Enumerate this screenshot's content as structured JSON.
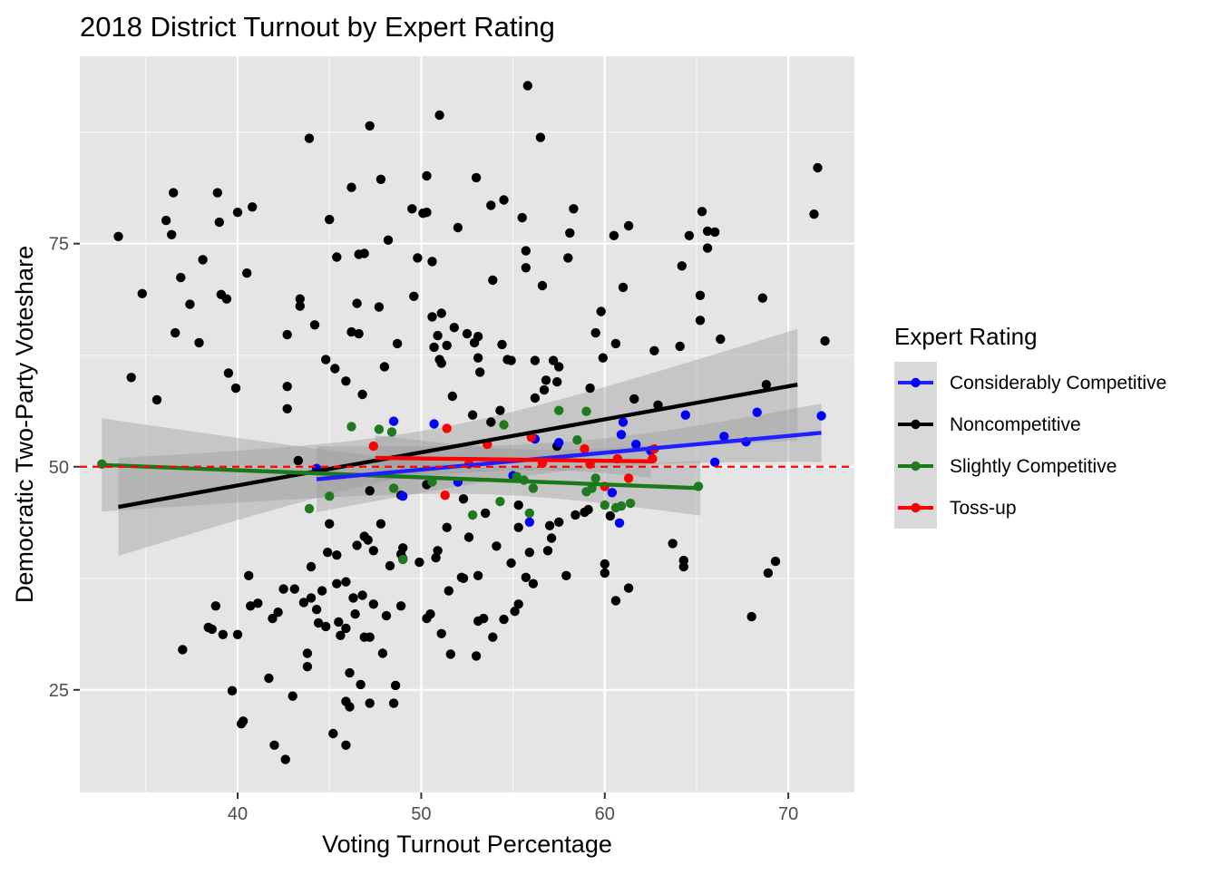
{
  "chart_data": {
    "type": "scatter",
    "title": "2018 District Turnout by Expert Rating",
    "xlabel": "Voting Turnout Percentage",
    "ylabel": "Democratic Two-Party Voteshare",
    "xlim": [
      31.4,
      73.6
    ],
    "ylim": [
      13.5,
      96.0
    ],
    "x_ticks": [
      40,
      50,
      60,
      70
    ],
    "y_ticks": [
      25,
      50,
      75
    ],
    "x_tick_labels": [
      "40",
      "50",
      "60",
      "70"
    ],
    "y_tick_labels": [
      "25",
      "50",
      "75"
    ],
    "grid": true,
    "reference_line": {
      "y": 50,
      "style": "dashed",
      "color": "#ff0000"
    },
    "legend": {
      "title": "Expert Rating",
      "position": "right"
    },
    "series": [
      {
        "name": "Considerably Competitive",
        "color": "#0000ff",
        "points": [
          [
            48.5,
            55.1
          ],
          [
            50.7,
            54.8
          ],
          [
            49.0,
            46.7
          ],
          [
            52.0,
            48.3
          ],
          [
            55.0,
            49.0
          ],
          [
            56.2,
            53.1
          ],
          [
            57.5,
            52.7
          ],
          [
            55.9,
            43.8
          ],
          [
            60.4,
            47.1
          ],
          [
            60.8,
            43.7
          ],
          [
            60.9,
            53.6
          ],
          [
            61.0,
            55.0
          ],
          [
            61.7,
            52.5
          ],
          [
            62.5,
            51.8
          ],
          [
            64.4,
            55.8
          ],
          [
            66.0,
            50.5
          ],
          [
            66.5,
            53.4
          ],
          [
            67.7,
            52.8
          ],
          [
            68.3,
            56.1
          ],
          [
            71.8,
            55.7
          ],
          [
            44.3,
            49.8
          ]
        ],
        "trend": {
          "x": [
            44.3,
            71.8
          ],
          "y": [
            48.6,
            53.8
          ]
        }
      },
      {
        "name": "Noncompetitive",
        "color": "#000000",
        "points": [
          [
            33.5,
            75.8
          ],
          [
            34.2,
            60.0
          ],
          [
            34.8,
            69.4
          ],
          [
            35.6,
            57.5
          ],
          [
            36.1,
            77.6
          ],
          [
            36.4,
            76.0
          ],
          [
            36.5,
            80.7
          ],
          [
            36.6,
            65.0
          ],
          [
            36.9,
            71.2
          ],
          [
            37.0,
            29.5
          ],
          [
            37.4,
            68.2
          ],
          [
            37.9,
            63.9
          ],
          [
            38.1,
            73.2
          ],
          [
            38.4,
            32.0
          ],
          [
            38.6,
            31.8
          ],
          [
            38.8,
            34.4
          ],
          [
            38.9,
            80.7
          ],
          [
            39.0,
            77.4
          ],
          [
            39.1,
            69.3
          ],
          [
            39.2,
            31.2
          ],
          [
            39.4,
            68.8
          ],
          [
            39.5,
            60.5
          ],
          [
            39.7,
            24.9
          ],
          [
            39.9,
            58.8
          ],
          [
            40.0,
            78.5
          ],
          [
            40.0,
            31.2
          ],
          [
            40.2,
            21.2
          ],
          [
            40.3,
            21.5
          ],
          [
            40.5,
            71.7
          ],
          [
            40.6,
            37.8
          ],
          [
            40.8,
            79.1
          ],
          [
            40.7,
            34.4
          ],
          [
            41.1,
            34.7
          ],
          [
            41.7,
            26.3
          ],
          [
            41.9,
            33.0
          ],
          [
            42.0,
            18.8
          ],
          [
            42.2,
            33.7
          ],
          [
            42.6,
            17.2
          ],
          [
            42.5,
            36.3
          ],
          [
            42.7,
            64.8
          ],
          [
            42.7,
            59.0
          ],
          [
            42.7,
            56.5
          ],
          [
            43.0,
            24.3
          ],
          [
            43.1,
            36.3
          ],
          [
            43.4,
            68.0
          ],
          [
            43.4,
            68.8
          ],
          [
            43.6,
            34.8
          ],
          [
            43.8,
            29.1
          ],
          [
            43.8,
            27.6
          ],
          [
            43.9,
            86.8
          ],
          [
            44.0,
            38.8
          ],
          [
            44.0,
            35.3
          ],
          [
            44.2,
            65.9
          ],
          [
            44.3,
            34.0
          ],
          [
            44.4,
            32.5
          ],
          [
            44.6,
            36.1
          ],
          [
            44.8,
            62.0
          ],
          [
            44.8,
            32.1
          ],
          [
            44.9,
            40.4
          ],
          [
            45.0,
            77.7
          ],
          [
            45.0,
            43.6
          ],
          [
            45.2,
            20.1
          ],
          [
            45.3,
            61.0
          ],
          [
            45.4,
            73.5
          ],
          [
            45.4,
            36.9
          ],
          [
            45.4,
            40.1
          ],
          [
            45.5,
            32.6
          ],
          [
            45.6,
            31.1
          ],
          [
            45.9,
            59.6
          ],
          [
            45.9,
            37.1
          ],
          [
            45.9,
            31.9
          ],
          [
            45.9,
            18.8
          ],
          [
            45.9,
            23.7
          ],
          [
            46.1,
            26.9
          ],
          [
            46.1,
            23.1
          ],
          [
            46.2,
            81.3
          ],
          [
            46.2,
            65.1
          ],
          [
            46.3,
            35.3
          ],
          [
            46.4,
            33.5
          ],
          [
            46.5,
            68.3
          ],
          [
            46.5,
            41.2
          ],
          [
            46.6,
            64.9
          ],
          [
            46.6,
            73.8
          ],
          [
            46.7,
            25.6
          ],
          [
            46.8,
            58.1
          ],
          [
            46.8,
            35.6
          ],
          [
            46.9,
            73.9
          ],
          [
            46.9,
            42.2
          ],
          [
            46.9,
            30.9
          ],
          [
            47.1,
            41.8
          ],
          [
            47.2,
            88.2
          ],
          [
            47.2,
            30.9
          ],
          [
            47.2,
            23.5
          ],
          [
            47.4,
            40.6
          ],
          [
            47.4,
            34.6
          ],
          [
            47.7,
            67.9
          ],
          [
            47.8,
            82.2
          ],
          [
            47.8,
            43.6
          ],
          [
            47.9,
            29.1
          ],
          [
            48.0,
            61.2
          ],
          [
            48.1,
            33.3
          ],
          [
            48.2,
            75.4
          ],
          [
            48.3,
            38.9
          ],
          [
            48.5,
            23.5
          ],
          [
            48.6,
            25.5
          ],
          [
            48.7,
            63.8
          ],
          [
            48.9,
            40.2
          ],
          [
            48.9,
            34.4
          ],
          [
            48.9,
            46.8
          ],
          [
            49.0,
            39.7
          ],
          [
            49.0,
            40.9
          ],
          [
            49.5,
            78.9
          ],
          [
            49.6,
            69.1
          ],
          [
            49.8,
            73.4
          ],
          [
            49.9,
            39.3
          ],
          [
            50.1,
            78.4
          ],
          [
            50.3,
            82.6
          ],
          [
            50.3,
            48.0
          ],
          [
            50.3,
            78.5
          ],
          [
            50.3,
            33.0
          ],
          [
            50.5,
            33.5
          ],
          [
            50.6,
            73.0
          ],
          [
            50.6,
            66.8
          ],
          [
            50.7,
            63.4
          ],
          [
            50.8,
            39.8
          ],
          [
            50.9,
            64.7
          ],
          [
            50.9,
            40.6
          ],
          [
            51.0,
            62.0
          ],
          [
            51.0,
            89.4
          ],
          [
            51.1,
            67.2
          ],
          [
            51.1,
            61.6
          ],
          [
            51.1,
            31.3
          ],
          [
            51.4,
            43.2
          ],
          [
            51.4,
            63.6
          ],
          [
            51.5,
            36.1
          ],
          [
            51.6,
            29.0
          ],
          [
            51.7,
            57.9
          ],
          [
            51.8,
            65.6
          ],
          [
            52.0,
            76.8
          ],
          [
            52.2,
            37.6
          ],
          [
            52.3,
            37.5
          ],
          [
            52.3,
            46.4
          ],
          [
            52.5,
            64.9
          ],
          [
            52.6,
            42.1
          ],
          [
            52.8,
            55.8
          ],
          [
            52.9,
            63.9
          ],
          [
            53.0,
            82.4
          ],
          [
            53.0,
            28.8
          ],
          [
            53.1,
            64.6
          ],
          [
            53.1,
            62.2
          ],
          [
            53.1,
            37.8
          ],
          [
            53.1,
            32.7
          ],
          [
            53.2,
            60.6
          ],
          [
            53.4,
            33.0
          ],
          [
            53.5,
            44.8
          ],
          [
            53.8,
            79.3
          ],
          [
            53.8,
            55.0
          ],
          [
            53.9,
            30.9
          ],
          [
            53.9,
            70.9
          ],
          [
            54.1,
            41.1
          ],
          [
            54.3,
            56.3
          ],
          [
            54.4,
            63.7
          ],
          [
            54.5,
            79.9
          ],
          [
            54.5,
            32.9
          ],
          [
            54.7,
            62.0
          ],
          [
            54.9,
            61.9
          ],
          [
            54.9,
            39.2
          ],
          [
            55.1,
            33.8
          ],
          [
            55.3,
            34.6
          ],
          [
            55.3,
            45.7
          ],
          [
            55.3,
            43.2
          ],
          [
            55.5,
            77.9
          ],
          [
            55.7,
            72.3
          ],
          [
            55.7,
            74.2
          ],
          [
            55.7,
            37.6
          ],
          [
            55.8,
            92.7
          ],
          [
            55.9,
            40.4
          ],
          [
            56.1,
            36.9
          ],
          [
            56.2,
            61.9
          ],
          [
            56.2,
            57.7
          ],
          [
            56.5,
            86.9
          ],
          [
            56.6,
            70.3
          ],
          [
            56.7,
            58.6
          ],
          [
            56.8,
            59.7
          ],
          [
            56.9,
            40.6
          ],
          [
            57.0,
            43.4
          ],
          [
            57.1,
            42.0
          ],
          [
            57.2,
            61.9
          ],
          [
            57.4,
            52.3
          ],
          [
            57.4,
            59.5
          ],
          [
            57.5,
            61.2
          ],
          [
            57.5,
            43.8
          ],
          [
            57.9,
            37.8
          ],
          [
            58.0,
            73.4
          ],
          [
            58.1,
            76.2
          ],
          [
            58.3,
            78.9
          ],
          [
            58.4,
            44.6
          ],
          [
            58.9,
            44.9
          ],
          [
            59.1,
            45.2
          ],
          [
            59.2,
            58.8
          ],
          [
            59.5,
            65.0
          ],
          [
            59.8,
            67.4
          ],
          [
            59.9,
            62.2
          ],
          [
            60.0,
            39.1
          ],
          [
            60.0,
            38.1
          ],
          [
            60.3,
            44.5
          ],
          [
            60.5,
            75.9
          ],
          [
            60.6,
            63.8
          ],
          [
            60.6,
            35.0
          ],
          [
            61.0,
            70.1
          ],
          [
            61.3,
            77.0
          ],
          [
            61.3,
            36.4
          ],
          [
            61.6,
            57.6
          ],
          [
            62.7,
            63.0
          ],
          [
            62.9,
            56.9
          ],
          [
            63.7,
            41.4
          ],
          [
            64.1,
            63.5
          ],
          [
            64.2,
            72.5
          ],
          [
            64.3,
            38.8
          ],
          [
            64.3,
            39.5
          ],
          [
            64.6,
            75.9
          ],
          [
            65.2,
            69.2
          ],
          [
            65.2,
            66.4
          ],
          [
            65.3,
            78.6
          ],
          [
            65.6,
            76.4
          ],
          [
            65.6,
            74.5
          ],
          [
            66.0,
            76.3
          ],
          [
            66.3,
            64.3
          ],
          [
            68.0,
            33.2
          ],
          [
            68.6,
            68.9
          ],
          [
            68.8,
            59.2
          ],
          [
            68.9,
            38.1
          ],
          [
            69.3,
            39.4
          ],
          [
            71.4,
            78.3
          ],
          [
            71.6,
            83.5
          ],
          [
            72.0,
            64.1
          ],
          [
            43.3,
            50.7
          ],
          [
            47.2,
            47.3
          ]
        ],
        "trend": {
          "x": [
            33.5,
            70.5
          ],
          "y": [
            45.5,
            59.2
          ]
        }
      },
      {
        "name": "Slightly Competitive",
        "color": "#1f7a1f",
        "points": [
          [
            32.6,
            50.3
          ],
          [
            43.9,
            45.3
          ],
          [
            45.0,
            46.7
          ],
          [
            46.2,
            54.5
          ],
          [
            47.7,
            54.2
          ],
          [
            48.4,
            53.9
          ],
          [
            48.5,
            47.6
          ],
          [
            49.0,
            39.6
          ],
          [
            50.6,
            48.3
          ],
          [
            52.8,
            44.6
          ],
          [
            54.3,
            46.1
          ],
          [
            54.5,
            54.7
          ],
          [
            55.2,
            48.9
          ],
          [
            55.6,
            48.5
          ],
          [
            55.9,
            44.8
          ],
          [
            56.1,
            47.6
          ],
          [
            57.5,
            56.3
          ],
          [
            58.5,
            53.0
          ],
          [
            59.0,
            56.2
          ],
          [
            59.0,
            47.2
          ],
          [
            59.3,
            47.6
          ],
          [
            59.5,
            48.7
          ],
          [
            60.0,
            45.7
          ],
          [
            60.6,
            45.4
          ],
          [
            60.9,
            45.6
          ],
          [
            61.4,
            45.9
          ],
          [
            65.1,
            47.8
          ]
        ],
        "trend": {
          "x": [
            32.6,
            65.2
          ],
          "y": [
            50.2,
            47.6
          ]
        }
      },
      {
        "name": "Toss-up",
        "color": "#ff0000",
        "points": [
          [
            47.4,
            52.3
          ],
          [
            51.3,
            46.8
          ],
          [
            51.4,
            54.3
          ],
          [
            52.6,
            50.3
          ],
          [
            53.6,
            52.5
          ],
          [
            56.0,
            53.3
          ],
          [
            56.6,
            50.4
          ],
          [
            58.9,
            52.0
          ],
          [
            59.2,
            50.3
          ],
          [
            60.0,
            47.8
          ],
          [
            60.7,
            50.9
          ],
          [
            61.3,
            48.7
          ],
          [
            62.6,
            50.9
          ],
          [
            62.7,
            52.0
          ]
        ],
        "trend": {
          "x": [
            47.5,
            62.5
          ],
          "y": [
            51.0,
            50.6
          ]
        }
      }
    ]
  }
}
